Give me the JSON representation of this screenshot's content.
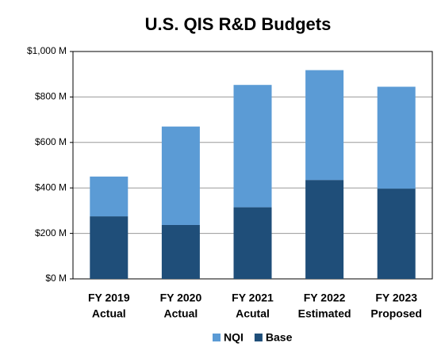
{
  "chart_data": {
    "type": "stacked-bar",
    "title": "U.S. QIS R&D Budgets",
    "categories": [
      [
        "FY 2019",
        "Actual"
      ],
      [
        "FY 2020",
        "Actual"
      ],
      [
        "FY 2021",
        "Acutal"
      ],
      [
        "FY 2022",
        "Estimated"
      ],
      [
        "FY 2023",
        "Proposed"
      ]
    ],
    "series": [
      {
        "name": "Base",
        "color": "#1f4e79",
        "values": [
          275,
          237,
          315,
          435,
          397
        ]
      },
      {
        "name": "NQI",
        "color": "#5b9bd5",
        "values": [
          175,
          433,
          538,
          483,
          448
        ]
      }
    ],
    "ylim": [
      0,
      1000
    ],
    "yticks": [
      {
        "value": 0,
        "label": "$0 M"
      },
      {
        "value": 200,
        "label": "$200 M"
      },
      {
        "value": 400,
        "label": "$400 M"
      },
      {
        "value": 600,
        "label": "$600 M"
      },
      {
        "value": 800,
        "label": "$800 M"
      },
      {
        "value": 1000,
        "label": "$1,000 M"
      }
    ],
    "grid": true,
    "legend": "bottom"
  }
}
